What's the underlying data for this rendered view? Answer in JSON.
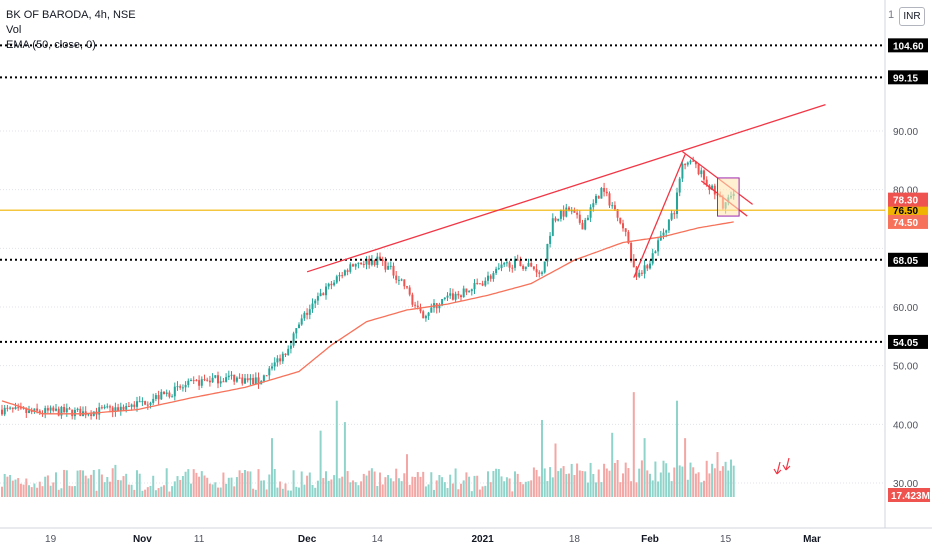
{
  "legend": {
    "symbol": "BK OF BARODA, 4h, NSE",
    "volume": "Vol",
    "ema": "EMA (50, close, 0)"
  },
  "currency_button": "INR",
  "scale_indicator": "1",
  "colors": {
    "up": "#26a69a",
    "down": "#ef5350",
    "up_volume": "#8fd4cb",
    "down_volume": "#f3a6a4",
    "ema": "#f7725a",
    "trendline": "#f23645",
    "support": "#f0b400",
    "box_border": "#9c27b0",
    "box_fill": "#ffe6b3",
    "level_tag_bg": "#000000",
    "grid": "#e0e3eb"
  },
  "chart_data": {
    "type": "candlestick",
    "title": "BK OF BARODA, 4h, NSE",
    "y_axis": {
      "ylim": [
        24.5,
        114.5
      ],
      "ticks": [
        30.0,
        40.0,
        50.0,
        60.0,
        70.0,
        80.0,
        90.0
      ],
      "tick_labels": [
        "30.00",
        "40.00",
        "50.00",
        "60.00",
        "",
        "80.00",
        "90.00"
      ],
      "grid": "dotted"
    },
    "x_axis": {
      "labels": [
        "19",
        "Nov",
        "11",
        "Dec",
        "14",
        "2021",
        "18",
        "Feb",
        "15",
        "Mar"
      ],
      "bold_labels": [
        "Nov",
        "Dec",
        "2021",
        "Feb",
        "Mar"
      ],
      "label_positions_bar_index": [
        18,
        52,
        73,
        113,
        139,
        178,
        212,
        240,
        268,
        300
      ]
    },
    "horizontal_levels": [
      {
        "value": 104.6,
        "label": "104.60",
        "style": "dotted-black"
      },
      {
        "value": 99.15,
        "label": "99.15",
        "style": "dotted-black"
      },
      {
        "value": 68.05,
        "label": "68.05",
        "style": "dotted-black"
      },
      {
        "value": 54.05,
        "label": "54.05",
        "style": "dotted-black"
      },
      {
        "value": 76.5,
        "label": "76.50",
        "style": "solid-yellow"
      }
    ],
    "price_tags": [
      {
        "value": 78.3,
        "label": "78.30",
        "kind": "last-price"
      },
      {
        "value": 74.5,
        "label": "74.50",
        "kind": "ema"
      }
    ],
    "volume_tag": "17.423M",
    "candles_anchor_closes": [
      [
        0,
        42.5
      ],
      [
        10,
        42.0
      ],
      [
        20,
        42.2
      ],
      [
        30,
        42.0
      ],
      [
        40,
        42.5
      ],
      [
        50,
        43.5
      ],
      [
        60,
        45.0
      ],
      [
        68,
        46.5
      ],
      [
        75,
        47.5
      ],
      [
        85,
        48.0
      ],
      [
        95,
        47.2
      ],
      [
        105,
        52.5
      ],
      [
        112,
        58.5
      ],
      [
        120,
        63.0
      ],
      [
        130,
        67.5
      ],
      [
        140,
        68.0
      ],
      [
        148,
        64.5
      ],
      [
        155,
        58.5
      ],
      [
        165,
        61.5
      ],
      [
        172,
        62.5
      ],
      [
        180,
        65.0
      ],
      [
        188,
        67.5
      ],
      [
        195,
        67.0
      ],
      [
        200,
        66.0
      ],
      [
        204,
        75.0
      ],
      [
        210,
        76.5
      ],
      [
        215,
        74.0
      ],
      [
        222,
        80.0
      ],
      [
        228,
        76.0
      ],
      [
        232,
        71.0
      ],
      [
        235,
        64.5
      ],
      [
        240,
        68.0
      ],
      [
        244,
        72.0
      ],
      [
        249,
        76.5
      ],
      [
        252,
        84.0
      ],
      [
        256,
        84.5
      ],
      [
        262,
        80.5
      ],
      [
        267,
        77.5
      ],
      [
        271,
        79.0
      ]
    ],
    "ema_anchor_values": [
      [
        0,
        44.0
      ],
      [
        15,
        41.8
      ],
      [
        30,
        41.8
      ],
      [
        50,
        42.5
      ],
      [
        70,
        44.5
      ],
      [
        90,
        46.3
      ],
      [
        110,
        49.0
      ],
      [
        122,
        53.5
      ],
      [
        135,
        57.5
      ],
      [
        150,
        59.5
      ],
      [
        165,
        60.5
      ],
      [
        180,
        62.0
      ],
      [
        196,
        64.0
      ],
      [
        212,
        68.0
      ],
      [
        230,
        71.0
      ],
      [
        245,
        72.0
      ],
      [
        258,
        73.5
      ],
      [
        271,
        74.5
      ]
    ],
    "volume_spike_bars": [
      [
        42,
        0.3
      ],
      [
        100,
        0.55
      ],
      [
        118,
        0.62
      ],
      [
        124,
        0.9
      ],
      [
        127,
        0.7
      ],
      [
        150,
        0.4
      ],
      [
        200,
        0.72
      ],
      [
        205,
        0.5
      ],
      [
        226,
        0.6
      ],
      [
        234,
        0.98
      ],
      [
        238,
        0.55
      ],
      [
        250,
        0.9
      ],
      [
        253,
        0.55
      ],
      [
        265,
        0.42
      ],
      [
        270,
        0.35
      ]
    ],
    "trendlines": [
      {
        "from": [
          113,
          66.0
        ],
        "to": [
          305,
          94.5
        ],
        "color": "red"
      },
      {
        "from": [
          252,
          86.5
        ],
        "to": [
          278,
          77.5
        ],
        "color": "red"
      },
      {
        "from": [
          234,
          65.0
        ],
        "to": [
          253,
          86.0
        ],
        "color": "red"
      },
      {
        "from": [
          259,
          81.5
        ],
        "to": [
          276,
          75.5
        ],
        "color": "red"
      }
    ],
    "flag_box": {
      "x_range": [
        265,
        273
      ],
      "y_range": [
        75.5,
        82.0
      ]
    },
    "annotation_arrows": 2
  }
}
